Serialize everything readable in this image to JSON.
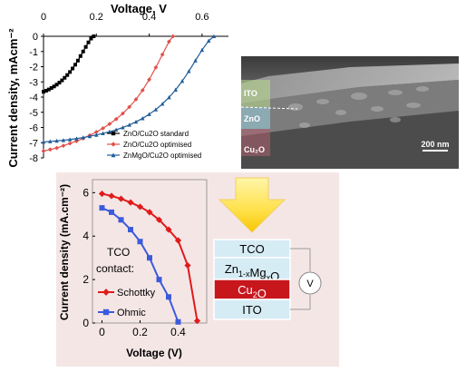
{
  "chart_data": [
    {
      "type": "line",
      "xlabel": "Voltage, V",
      "ylabel": "Current density, mAcm⁻²",
      "xlim": [
        0,
        0.7
      ],
      "ylim": [
        -8,
        0
      ],
      "x_tick_labels": [
        "0",
        "0.2",
        "0.4",
        "0.6"
      ],
      "x_ticks": [
        0,
        0.2,
        0.4,
        0.6
      ],
      "y_ticks": [
        0,
        -1,
        -2,
        -3,
        -4,
        -5,
        -6,
        -7,
        -8
      ],
      "y_tick_labels": [
        "0",
        "-1",
        "-2",
        "-3",
        "-4",
        "-5",
        "-6",
        "-7",
        "-8"
      ],
      "legend_position": "bottom-right",
      "series": [
        {
          "name": "ZnO/Cu2O standard",
          "color": "#000000",
          "marker": "square",
          "x": [
            0,
            0.01,
            0.02,
            0.03,
            0.04,
            0.05,
            0.06,
            0.07,
            0.08,
            0.09,
            0.1,
            0.11,
            0.12,
            0.13,
            0.14,
            0.15,
            0.16,
            0.17,
            0.18,
            0.19
          ],
          "y": [
            -3.65,
            -3.58,
            -3.5,
            -3.4,
            -3.3,
            -3.18,
            -3.05,
            -2.9,
            -2.73,
            -2.55,
            -2.35,
            -2.12,
            -1.87,
            -1.6,
            -1.3,
            -1.0,
            -0.7,
            -0.4,
            -0.15,
            0.0
          ]
        },
        {
          "name": "ZnO/Cu2O optimised",
          "color": "#e0504a",
          "marker": "diamond",
          "x": [
            0,
            0.025,
            0.05,
            0.075,
            0.1,
            0.125,
            0.15,
            0.175,
            0.2,
            0.225,
            0.25,
            0.275,
            0.3,
            0.325,
            0.35,
            0.375,
            0.4,
            0.425,
            0.45,
            0.475,
            0.49
          ],
          "y": [
            -7.55,
            -7.45,
            -7.35,
            -7.2,
            -7.05,
            -6.9,
            -6.72,
            -6.52,
            -6.3,
            -6.05,
            -5.77,
            -5.45,
            -5.08,
            -4.65,
            -4.15,
            -3.55,
            -2.85,
            -2.05,
            -1.2,
            -0.35,
            0.0
          ]
        },
        {
          "name": "ZnMgO/Cu2O optimised",
          "color": "#1f5c99",
          "marker": "triangle",
          "x": [
            0,
            0.025,
            0.05,
            0.075,
            0.1,
            0.125,
            0.15,
            0.175,
            0.2,
            0.225,
            0.25,
            0.275,
            0.3,
            0.325,
            0.35,
            0.375,
            0.4,
            0.425,
            0.45,
            0.475,
            0.5,
            0.525,
            0.55,
            0.575,
            0.6,
            0.625,
            0.645
          ],
          "y": [
            -6.95,
            -6.92,
            -6.88,
            -6.84,
            -6.79,
            -6.73,
            -6.66,
            -6.58,
            -6.49,
            -6.39,
            -6.28,
            -6.15,
            -6.0,
            -5.83,
            -5.63,
            -5.4,
            -5.13,
            -4.82,
            -4.45,
            -4.02,
            -3.52,
            -2.95,
            -2.3,
            -1.6,
            -0.9,
            -0.3,
            0.0
          ]
        }
      ]
    },
    {
      "type": "line",
      "xlabel": "Voltage (V)",
      "ylabel": "Current density (mA.cm⁻²)",
      "xlim": [
        -0.05,
        0.55
      ],
      "ylim": [
        0,
        6.6
      ],
      "x_ticks": [
        0,
        0.2,
        0.4
      ],
      "x_tick_labels": [
        "0",
        "0.2",
        "0.4"
      ],
      "y_ticks": [
        0,
        2,
        4,
        6
      ],
      "y_tick_labels": [
        "0",
        "2",
        "4",
        "6"
      ],
      "legend_title": [
        "TCO",
        "contact:"
      ],
      "legend_position": "center-left",
      "series": [
        {
          "name": "Schottky",
          "color": "#e01b1b",
          "marker": "diamond",
          "x": [
            0,
            0.05,
            0.1,
            0.15,
            0.2,
            0.25,
            0.3,
            0.35,
            0.4,
            0.45,
            0.5
          ],
          "y": [
            5.95,
            5.85,
            5.72,
            5.55,
            5.35,
            5.1,
            4.75,
            4.3,
            3.8,
            2.65,
            0.1
          ]
        },
        {
          "name": "Ohmic",
          "color": "#3b5bdb",
          "marker": "square",
          "x": [
            0,
            0.05,
            0.1,
            0.15,
            0.2,
            0.25,
            0.3,
            0.35,
            0.4
          ],
          "y": [
            5.3,
            5.1,
            4.75,
            4.3,
            3.75,
            3.0,
            2.0,
            1.2,
            0.05
          ]
        }
      ]
    }
  ],
  "sem_image": {
    "labels": [
      "ITO",
      "ZnO",
      "Cu₂O"
    ],
    "scale_bar": "200 nm"
  },
  "device_stack": {
    "layers": [
      {
        "label": "TCO",
        "fill": "#d6ecf5"
      },
      {
        "label": "Zn",
        "sub1": "1-x",
        "mid": "Mg",
        "sub2": "x",
        "tail": "O",
        "fill": "#d6ecf5"
      },
      {
        "label": "Cu",
        "sub1": "2",
        "tail": "O",
        "fill": "#c8161d",
        "text_color": "#ffffff"
      },
      {
        "label": "ITO",
        "fill": "#d6ecf5"
      }
    ],
    "meter_label": "V"
  }
}
